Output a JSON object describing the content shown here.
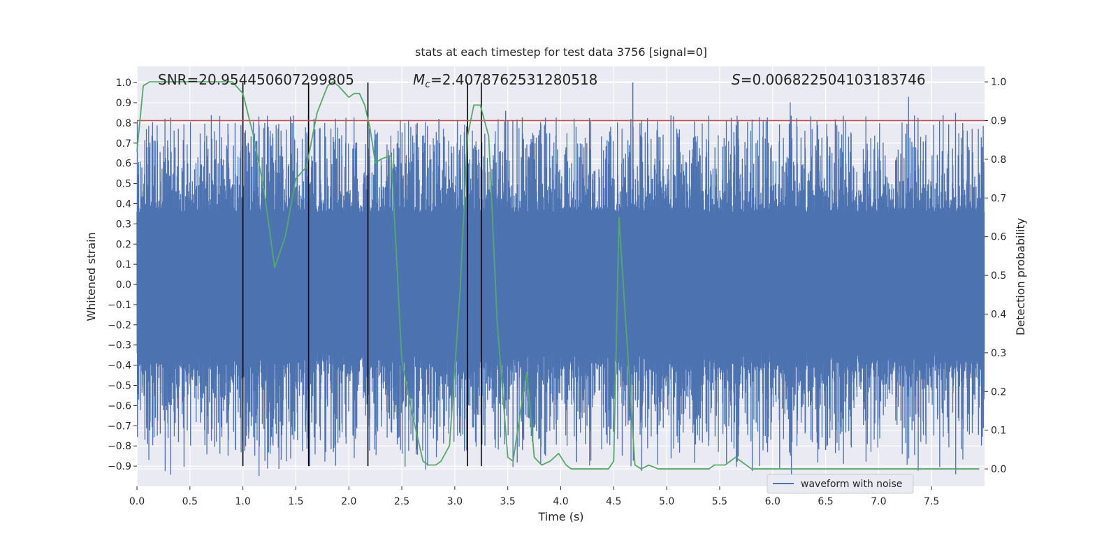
{
  "chart_data": {
    "type": "line",
    "title": "stats at each timestep for test data 3756 [signal=0]",
    "xlabel": "Time (s)",
    "ylabel": "Whitened strain",
    "y2label": "Detection probability",
    "xlim": [
      0.0,
      8.0
    ],
    "ylim": [
      -1.0,
      1.08
    ],
    "y2lim": [
      -0.045,
      1.04
    ],
    "xticks": [
      "0.0",
      "0.5",
      "1.0",
      "1.5",
      "2.0",
      "2.5",
      "3.0",
      "3.5",
      "4.0",
      "4.5",
      "5.0",
      "5.5",
      "6.0",
      "6.5",
      "7.0",
      "7.5"
    ],
    "yticks": [
      "−0.9",
      "−0.8",
      "−0.7",
      "−0.6",
      "−0.5",
      "−0.4",
      "−0.3",
      "−0.2",
      "−0.1",
      "0.0",
      "0.1",
      "0.2",
      "0.3",
      "0.4",
      "0.5",
      "0.6",
      "0.7",
      "0.8",
      "0.9",
      "1.0"
    ],
    "y2ticks": [
      "0.0",
      "0.1",
      "0.2",
      "0.3",
      "0.4",
      "0.5",
      "0.6",
      "0.7",
      "0.8",
      "0.9",
      "1.0"
    ],
    "annotations": {
      "snr": "SNR=20.954450607299805",
      "mc": "=2.4078762531280518",
      "mc_symbol": "M",
      "mc_sub": "c",
      "s": "=0.006822504103183746",
      "s_symbol": "S"
    },
    "legend": {
      "label": "waveform with noise",
      "position": "lower right"
    },
    "threshold": {
      "value": 0.9,
      "axis": "right",
      "color": "#c44e52"
    },
    "vertical_lines": {
      "x": [
        1.0,
        1.62,
        2.18,
        3.12,
        3.25
      ],
      "ymin": -0.9,
      "ymax": 1.0,
      "color": "#000000"
    },
    "series": [
      {
        "name": "waveform with noise",
        "axis": "left",
        "color": "#4c72b0",
        "kind": "noise",
        "duration": 8.0,
        "band": 0.36,
        "peaks": [
          {
            "x": 4.68,
            "y": 1.0
          },
          {
            "x": 3.48,
            "y": 0.86
          },
          {
            "x": 2.85,
            "y": 0.82
          },
          {
            "x": 0.93,
            "y": -0.82
          },
          {
            "x": 1.63,
            "y": -0.9
          },
          {
            "x": 4.15,
            "y": -0.88
          },
          {
            "x": 0.1,
            "y": -0.79
          },
          {
            "x": 6.5,
            "y": -0.82
          }
        ]
      },
      {
        "name": "detection probability",
        "axis": "right",
        "color": "#55a868",
        "x": [
          0.0,
          0.06,
          0.12,
          0.3,
          0.5,
          0.7,
          0.9,
          1.0,
          1.1,
          1.2,
          1.3,
          1.4,
          1.5,
          1.6,
          1.7,
          1.8,
          1.85,
          1.9,
          2.0,
          2.05,
          2.1,
          2.15,
          2.2,
          2.25,
          2.3,
          2.4,
          2.5,
          2.6,
          2.7,
          2.75,
          2.82,
          2.87,
          2.95,
          3.05,
          3.12,
          3.18,
          3.24,
          3.32,
          3.4,
          3.5,
          3.55,
          3.62,
          3.68,
          3.75,
          3.82,
          3.9,
          3.98,
          4.05,
          4.1,
          4.2,
          4.45,
          4.5,
          4.55,
          4.62,
          4.7,
          4.76,
          4.83,
          4.92,
          5.0,
          5.2,
          5.3,
          5.4,
          5.45,
          5.5,
          5.55,
          5.6,
          5.65,
          5.7,
          5.8,
          6.0,
          6.2,
          6.4,
          6.5,
          6.6,
          6.7,
          6.8,
          7.0,
          7.1,
          7.3,
          7.5,
          7.7,
          7.95
        ],
        "y": [
          0.82,
          0.99,
          1.0,
          1.0,
          1.0,
          1.0,
          1.0,
          0.97,
          0.86,
          0.72,
          0.52,
          0.6,
          0.75,
          0.78,
          0.92,
          0.99,
          1.0,
          0.99,
          0.96,
          0.97,
          0.97,
          0.94,
          0.88,
          0.79,
          0.8,
          0.81,
          0.28,
          0.14,
          0.02,
          0.01,
          0.01,
          0.02,
          0.06,
          0.46,
          0.86,
          0.94,
          0.94,
          0.86,
          0.38,
          0.03,
          0.02,
          0.15,
          0.25,
          0.03,
          0.01,
          0.02,
          0.04,
          0.01,
          0.0,
          0.0,
          0.0,
          0.02,
          0.65,
          0.35,
          0.01,
          0.0,
          0.01,
          0.0,
          0.0,
          0.0,
          0.0,
          0.0,
          0.01,
          0.01,
          0.01,
          0.02,
          0.03,
          0.02,
          0.0,
          0.0,
          0.0,
          0.0,
          0.0,
          0.0,
          0.0,
          0.0,
          0.0,
          0.0,
          0.0,
          0.0,
          0.0,
          0.0
        ]
      }
    ]
  }
}
